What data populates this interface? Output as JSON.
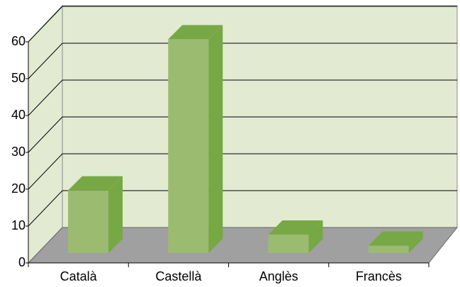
{
  "chart_data": {
    "type": "bar3d",
    "categories": [
      "Català",
      "Castellà",
      "Anglès",
      "Francès"
    ],
    "values": [
      17,
      58,
      5,
      2
    ],
    "color": "#9bbb71",
    "ylim": [
      0,
      60
    ],
    "yticks": [
      0,
      10,
      20,
      30,
      40,
      50,
      60
    ],
    "grid": true
  }
}
